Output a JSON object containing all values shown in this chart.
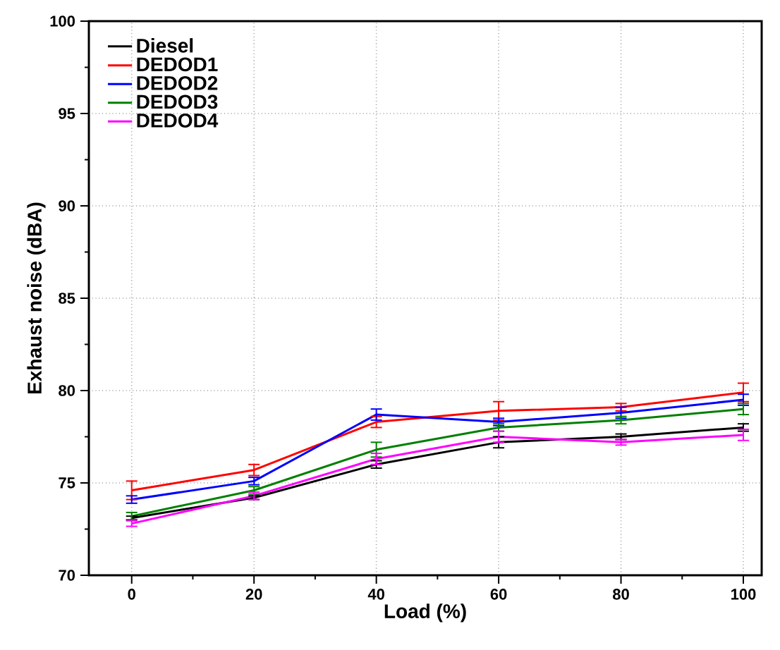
{
  "chart_data": {
    "type": "line",
    "xlabel": "Load (%)",
    "ylabel": "Exhaust noise (dBA)",
    "x": [
      0,
      20,
      40,
      60,
      80,
      100
    ],
    "series": [
      {
        "name": "Diesel",
        "color": "#000000",
        "values": [
          73.1,
          74.2,
          76.0,
          77.2,
          77.5,
          78.0
        ],
        "errors": [
          0.1,
          0.1,
          0.2,
          0.3,
          0.15,
          0.2
        ]
      },
      {
        "name": "DEDOD1",
        "color": "#ff0000",
        "values": [
          74.6,
          75.7,
          78.3,
          78.9,
          79.1,
          79.9
        ],
        "errors": [
          0.5,
          0.3,
          0.3,
          0.5,
          0.2,
          0.5
        ]
      },
      {
        "name": "DEDOD2",
        "color": "#0000ff",
        "values": [
          74.1,
          75.1,
          78.7,
          78.3,
          78.8,
          79.5
        ],
        "errors": [
          0.2,
          0.2,
          0.3,
          0.2,
          0.3,
          0.3
        ]
      },
      {
        "name": "DEDOD3",
        "color": "#008000",
        "values": [
          73.2,
          74.6,
          76.8,
          78.0,
          78.4,
          79.0
        ],
        "errors": [
          0.2,
          0.2,
          0.4,
          0.2,
          0.2,
          0.3
        ]
      },
      {
        "name": "DEDOD4",
        "color": "#ff00ff",
        "values": [
          72.8,
          74.3,
          76.3,
          77.5,
          77.2,
          77.6
        ],
        "errors": [
          0.15,
          0.2,
          0.3,
          0.3,
          0.15,
          0.3
        ]
      }
    ],
    "xlim": [
      -7,
      103
    ],
    "ylim": [
      70,
      100
    ],
    "xticks": [
      0,
      20,
      40,
      60,
      80,
      100
    ],
    "yticks": [
      70,
      75,
      80,
      85,
      90,
      95,
      100
    ],
    "grid": true,
    "legend": "top left",
    "marker": "none",
    "line_style": "solid"
  }
}
